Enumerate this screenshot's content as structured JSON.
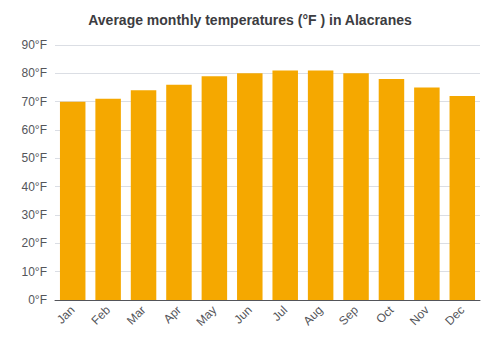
{
  "chart_data": {
    "type": "bar",
    "title": "Average monthly temperatures (°F ) in Alacranes",
    "categories": [
      "Jan",
      "Feb",
      "Mar",
      "Apr",
      "May",
      "Jun",
      "Jul",
      "Aug",
      "Sep",
      "Oct",
      "Nov",
      "Dec"
    ],
    "values": [
      70,
      71,
      74,
      76,
      79,
      80,
      81,
      81,
      80,
      78,
      75,
      72
    ],
    "color": "#F5A800",
    "ylim": [
      0,
      90
    ],
    "yticks": [
      {
        "value": 0,
        "label": "0°F"
      },
      {
        "value": 10,
        "label": "10°F"
      },
      {
        "value": 20,
        "label": "20°F"
      },
      {
        "value": 30,
        "label": "30°F"
      },
      {
        "value": 40,
        "label": "40°F"
      },
      {
        "value": 50,
        "label": "50°F"
      },
      {
        "value": 60,
        "label": "60°F"
      },
      {
        "value": 70,
        "label": "70°F"
      },
      {
        "value": 80,
        "label": "80°F"
      },
      {
        "value": 90,
        "label": "90°F"
      }
    ],
    "grid": true
  }
}
